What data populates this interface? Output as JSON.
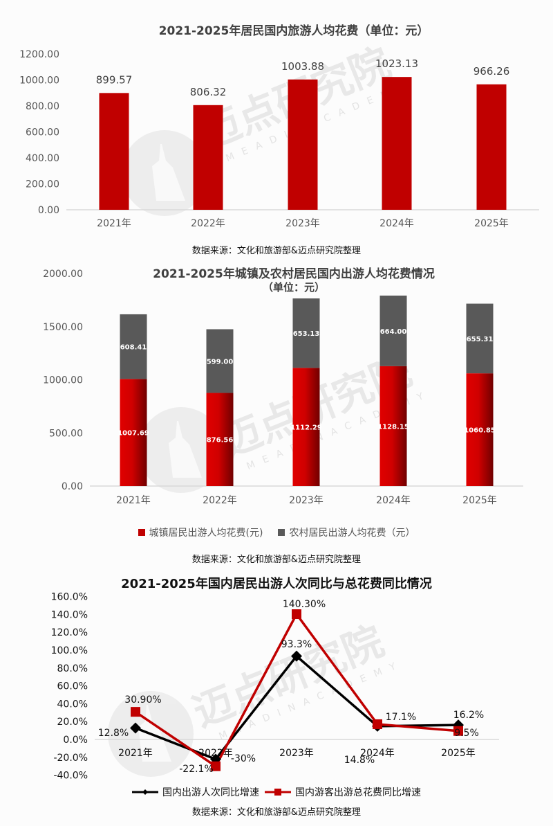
{
  "chart_data": [
    {
      "type": "bar",
      "title": "2021-2025年居民国内旅游人均花费（单位：元）",
      "categories": [
        "2021年",
        "2022年",
        "2023年",
        "2024年",
        "2025年"
      ],
      "values": [
        899.57,
        806.32,
        1003.88,
        1023.13,
        966.26
      ],
      "value_labels": [
        "899.57",
        "806.32",
        "1003.88",
        "1023.13",
        "966.26"
      ],
      "yticks": [
        "0.00",
        "200.00",
        "400.00",
        "600.00",
        "800.00",
        "1000.00",
        "1200.00"
      ],
      "ylim": [
        0,
        1200
      ],
      "xlabel": "",
      "ylabel": "",
      "grid": false,
      "color": "#c00000",
      "source": "数据来源：文化和旅游部&迈点研究院整理"
    },
    {
      "type": "bar",
      "stacked": true,
      "title": "2021-2025年城镇及农村居民国内出游人均花费情况",
      "subtitle": "（单位：元）",
      "categories": [
        "2021年",
        "2022年",
        "2023年",
        "2024年",
        "2025年"
      ],
      "series": [
        {
          "name": "城镇居民出游人均花费(元)",
          "values": [
            1007.69,
            876.56,
            1112.29,
            1128.15,
            1060.85
          ],
          "labels": [
            "1007.69",
            "876.56",
            "1112.29",
            "1128.15",
            "1060.85"
          ],
          "color": "#d60000"
        },
        {
          "name": "农村居民出游人均花费（元）",
          "values": [
            608.41,
            599.0,
            653.13,
            664.0,
            655.31
          ],
          "labels": [
            "608.41",
            "599.00",
            "653.13",
            "664.00",
            "655.31"
          ],
          "color": "#595959"
        }
      ],
      "yticks": [
        "0.00",
        "500.00",
        "1000.00",
        "1500.00",
        "2000.00"
      ],
      "ylim": [
        0,
        2000
      ],
      "legend_position": "bottom",
      "grid": false,
      "source": "数据来源：文化和旅游部&迈点研究院整理"
    },
    {
      "type": "line",
      "title": "2021-2025年国内居民出游人次同比与总花费同比情况",
      "categories": [
        "2021年",
        "2022年",
        "2023年",
        "2024年",
        "2025年"
      ],
      "series": [
        {
          "name": "国内出游人次同比增速",
          "values": [
            12.8,
            -22.1,
            93.3,
            14.8,
            16.2
          ],
          "labels": [
            "12.8%",
            "-22.1%",
            "93.3%",
            "14.8%",
            "16.2%"
          ],
          "color": "#000000",
          "marker": "diamond"
        },
        {
          "name": "国内游客出游总花费同比增速",
          "values": [
            30.9,
            -30.0,
            140.3,
            17.1,
            9.5
          ],
          "labels": [
            "30.90%",
            "-30%",
            "140.30%",
            "17.1%",
            "9.5%"
          ],
          "color": "#c00000",
          "marker": "square"
        }
      ],
      "yticks": [
        "-40.0%",
        "-20.0%",
        "0.0%",
        "20.0%",
        "40.0%",
        "60.0%",
        "80.0%",
        "100.0%",
        "120.0%",
        "140.0%",
        "160.0%"
      ],
      "ylim": [
        -40,
        160
      ],
      "legend_position": "bottom",
      "grid": false,
      "source": "数据来源：文化和旅游部&迈点研究院整理"
    }
  ],
  "watermark": {
    "cn": "迈点研究院",
    "en": "M E A D I N   A C A D E M Y"
  }
}
